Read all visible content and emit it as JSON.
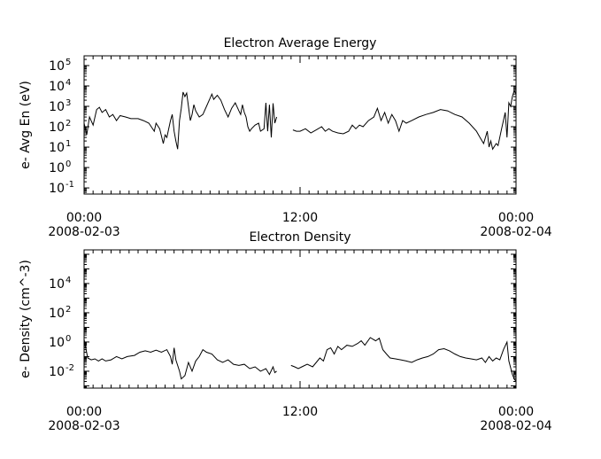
{
  "chart_data": [
    {
      "type": "line",
      "title": "Electron Average Energy",
      "ylabel": "e- Avg En (eV)",
      "yscale": "log",
      "ylim": [
        0.05,
        300000
      ],
      "y_ticks": [
        {
          "value": 0.1,
          "base": "10",
          "exp": "-1"
        },
        {
          "value": 1,
          "base": "10",
          "exp": "0"
        },
        {
          "value": 10,
          "base": "10",
          "exp": "1"
        },
        {
          "value": 100,
          "base": "10",
          "exp": "2"
        },
        {
          "value": 1000,
          "base": "10",
          "exp": "3"
        },
        {
          "value": 10000,
          "base": "10",
          "exp": "4"
        },
        {
          "value": 100000,
          "base": "10",
          "exp": "5"
        }
      ],
      "xlim": [
        0,
        24
      ],
      "x_ticks": [
        {
          "value": 0,
          "lines": [
            "00:00",
            "2008-02-03"
          ]
        },
        {
          "value": 12,
          "lines": [
            "12:00"
          ]
        },
        {
          "value": 24,
          "lines": [
            "00:00",
            "2008-02-04"
          ]
        }
      ],
      "grid": false,
      "series": [
        {
          "segments": [
            [
              [
                0.0,
                150
              ],
              [
                0.15,
                40
              ],
              [
                0.3,
                300
              ],
              [
                0.5,
                120
              ],
              [
                0.7,
                700
              ],
              [
                0.85,
                900
              ],
              [
                1.0,
                500
              ],
              [
                1.2,
                700
              ],
              [
                1.4,
                300
              ],
              [
                1.6,
                400
              ],
              [
                1.8,
                200
              ],
              [
                2.0,
                350
              ],
              [
                2.3,
                300
              ],
              [
                2.6,
                250
              ],
              [
                3.0,
                250
              ],
              [
                3.3,
                200
              ],
              [
                3.6,
                150
              ],
              [
                3.9,
                60
              ],
              [
                4.0,
                150
              ],
              [
                4.2,
                80
              ],
              [
                4.4,
                15
              ],
              [
                4.5,
                40
              ],
              [
                4.6,
                30
              ],
              [
                4.8,
                200
              ],
              [
                4.9,
                400
              ],
              [
                5.0,
                60
              ],
              [
                5.1,
                20
              ],
              [
                5.2,
                8
              ],
              [
                5.3,
                200
              ],
              [
                5.4,
                800
              ],
              [
                5.5,
                5000
              ],
              [
                5.6,
                3000
              ],
              [
                5.7,
                4500
              ],
              [
                5.8,
                1000
              ],
              [
                5.9,
                200
              ],
              [
                6.0,
                400
              ],
              [
                6.1,
                1200
              ],
              [
                6.2,
                600
              ],
              [
                6.4,
                300
              ],
              [
                6.6,
                400
              ],
              [
                6.8,
                1000
              ],
              [
                7.0,
                2500
              ],
              [
                7.1,
                4000
              ],
              [
                7.2,
                2200
              ],
              [
                7.4,
                3500
              ],
              [
                7.6,
                2000
              ],
              [
                7.8,
                700
              ],
              [
                8.0,
                300
              ],
              [
                8.2,
                800
              ],
              [
                8.4,
                1500
              ],
              [
                8.6,
                600
              ],
              [
                8.7,
                400
              ],
              [
                8.8,
                1200
              ],
              [
                8.9,
                500
              ],
              [
                9.0,
                300
              ],
              [
                9.1,
                100
              ],
              [
                9.2,
                60
              ],
              [
                9.3,
                80
              ],
              [
                9.5,
                120
              ],
              [
                9.7,
                150
              ],
              [
                9.8,
                60
              ],
              [
                10.0,
                80
              ],
              [
                10.1,
                1500
              ],
              [
                10.2,
                60
              ],
              [
                10.3,
                1200
              ],
              [
                10.4,
                30
              ],
              [
                10.5,
                1400
              ],
              [
                10.6,
                150
              ],
              [
                10.7,
                300
              ]
            ],
            [
              [
                11.6,
                70
              ],
              [
                11.8,
                60
              ],
              [
                12.0,
                60
              ],
              [
                12.3,
                80
              ],
              [
                12.6,
                50
              ],
              [
                12.9,
                70
              ],
              [
                13.2,
                100
              ],
              [
                13.4,
                60
              ],
              [
                13.6,
                80
              ],
              [
                13.8,
                60
              ],
              [
                14.1,
                50
              ],
              [
                14.4,
                45
              ],
              [
                14.7,
                60
              ],
              [
                14.9,
                120
              ],
              [
                15.1,
                80
              ],
              [
                15.3,
                120
              ],
              [
                15.5,
                100
              ],
              [
                15.8,
                200
              ],
              [
                16.1,
                300
              ],
              [
                16.3,
                800
              ],
              [
                16.5,
                200
              ],
              [
                16.7,
                500
              ],
              [
                16.9,
                150
              ],
              [
                17.1,
                400
              ],
              [
                17.3,
                200
              ],
              [
                17.5,
                60
              ],
              [
                17.7,
                200
              ],
              [
                17.9,
                150
              ],
              [
                18.2,
                200
              ],
              [
                18.6,
                300
              ],
              [
                19.0,
                400
              ],
              [
                19.4,
                500
              ],
              [
                19.8,
                700
              ],
              [
                20.2,
                600
              ],
              [
                20.6,
                400
              ],
              [
                21.0,
                300
              ],
              [
                21.4,
                150
              ],
              [
                21.8,
                60
              ],
              [
                22.0,
                30
              ],
              [
                22.2,
                15
              ],
              [
                22.4,
                60
              ],
              [
                22.5,
                10
              ],
              [
                22.6,
                20
              ],
              [
                22.7,
                8
              ],
              [
                22.9,
                15
              ],
              [
                23.0,
                12
              ],
              [
                23.2,
                80
              ],
              [
                23.4,
                500
              ],
              [
                23.5,
                30
              ],
              [
                23.6,
                1500
              ],
              [
                23.7,
                1000
              ],
              [
                23.8,
                3000
              ],
              [
                23.9,
                6000
              ],
              [
                24.0,
                4000
              ]
            ]
          ]
        }
      ]
    },
    {
      "type": "line",
      "title": "Electron Density",
      "ylabel": "e- Density (cm^-3)",
      "yscale": "log",
      "ylim": [
        0.0007,
        2000000
      ],
      "y_ticks": [
        {
          "value": 0.01,
          "base": "10",
          "exp": "-2"
        },
        {
          "value": 1,
          "base": "10",
          "exp": "0"
        },
        {
          "value": 100,
          "base": "10",
          "exp": "2"
        },
        {
          "value": 10000,
          "base": "10",
          "exp": "4"
        }
      ],
      "xlim": [
        0,
        24
      ],
      "x_ticks": [
        {
          "value": 0,
          "lines": [
            "00:00",
            "2008-02-03"
          ]
        },
        {
          "value": 12,
          "lines": [
            "12:00"
          ]
        },
        {
          "value": 24,
          "lines": [
            "00:00",
            "2008-02-04"
          ]
        }
      ],
      "grid": false,
      "series": [
        {
          "segments": [
            [
              [
                0.0,
                1.5
              ],
              [
                0.2,
                0.08
              ],
              [
                0.4,
                0.06
              ],
              [
                0.6,
                0.07
              ],
              [
                0.8,
                0.05
              ],
              [
                1.0,
                0.07
              ],
              [
                1.2,
                0.05
              ],
              [
                1.5,
                0.06
              ],
              [
                1.8,
                0.1
              ],
              [
                2.1,
                0.07
              ],
              [
                2.4,
                0.1
              ],
              [
                2.8,
                0.12
              ],
              [
                3.1,
                0.2
              ],
              [
                3.4,
                0.25
              ],
              [
                3.7,
                0.2
              ],
              [
                4.0,
                0.28
              ],
              [
                4.3,
                0.2
              ],
              [
                4.6,
                0.3
              ],
              [
                4.8,
                0.1
              ],
              [
                4.9,
                0.03
              ],
              [
                5.0,
                0.4
              ],
              [
                5.1,
                0.06
              ],
              [
                5.3,
                0.01
              ],
              [
                5.4,
                0.003
              ],
              [
                5.6,
                0.005
              ],
              [
                5.8,
                0.04
              ],
              [
                6.0,
                0.01
              ],
              [
                6.2,
                0.05
              ],
              [
                6.4,
                0.1
              ],
              [
                6.6,
                0.3
              ],
              [
                6.8,
                0.2
              ],
              [
                7.1,
                0.15
              ],
              [
                7.4,
                0.06
              ],
              [
                7.7,
                0.04
              ],
              [
                8.0,
                0.06
              ],
              [
                8.3,
                0.03
              ],
              [
                8.6,
                0.025
              ],
              [
                8.9,
                0.03
              ],
              [
                9.2,
                0.015
              ],
              [
                9.5,
                0.02
              ],
              [
                9.8,
                0.01
              ],
              [
                10.1,
                0.015
              ],
              [
                10.3,
                0.006
              ],
              [
                10.5,
                0.02
              ],
              [
                10.6,
                0.008
              ],
              [
                10.7,
                0.01
              ]
            ],
            [
              [
                11.5,
                0.025
              ],
              [
                11.7,
                0.02
              ],
              [
                11.9,
                0.015
              ],
              [
                12.1,
                0.02
              ],
              [
                12.4,
                0.03
              ],
              [
                12.7,
                0.02
              ],
              [
                12.9,
                0.04
              ],
              [
                13.1,
                0.08
              ],
              [
                13.3,
                0.05
              ],
              [
                13.5,
                0.3
              ],
              [
                13.7,
                0.4
              ],
              [
                13.9,
                0.15
              ],
              [
                14.1,
                0.5
              ],
              [
                14.3,
                0.3
              ],
              [
                14.6,
                0.6
              ],
              [
                14.9,
                0.5
              ],
              [
                15.2,
                0.8
              ],
              [
                15.4,
                1.2
              ],
              [
                15.6,
                0.6
              ],
              [
                15.9,
                2.0
              ],
              [
                16.2,
                1.2
              ],
              [
                16.4,
                1.8
              ],
              [
                16.6,
                0.3
              ],
              [
                16.8,
                0.15
              ],
              [
                17.0,
                0.08
              ],
              [
                17.3,
                0.07
              ],
              [
                17.6,
                0.06
              ],
              [
                17.9,
                0.05
              ],
              [
                18.2,
                0.04
              ],
              [
                18.5,
                0.06
              ],
              [
                18.8,
                0.08
              ],
              [
                19.1,
                0.1
              ],
              [
                19.4,
                0.15
              ],
              [
                19.7,
                0.3
              ],
              [
                20.0,
                0.35
              ],
              [
                20.3,
                0.25
              ],
              [
                20.6,
                0.15
              ],
              [
                20.9,
                0.1
              ],
              [
                21.2,
                0.08
              ],
              [
                21.5,
                0.07
              ],
              [
                21.8,
                0.06
              ],
              [
                22.1,
                0.08
              ],
              [
                22.3,
                0.04
              ],
              [
                22.5,
                0.1
              ],
              [
                22.7,
                0.05
              ],
              [
                22.9,
                0.08
              ],
              [
                23.1,
                0.06
              ],
              [
                23.3,
                0.3
              ],
              [
                23.5,
                1.0
              ],
              [
                23.6,
                0.05
              ],
              [
                23.8,
                0.006
              ],
              [
                23.9,
                0.003
              ],
              [
                24.0,
                0.002
              ]
            ]
          ]
        }
      ]
    }
  ]
}
